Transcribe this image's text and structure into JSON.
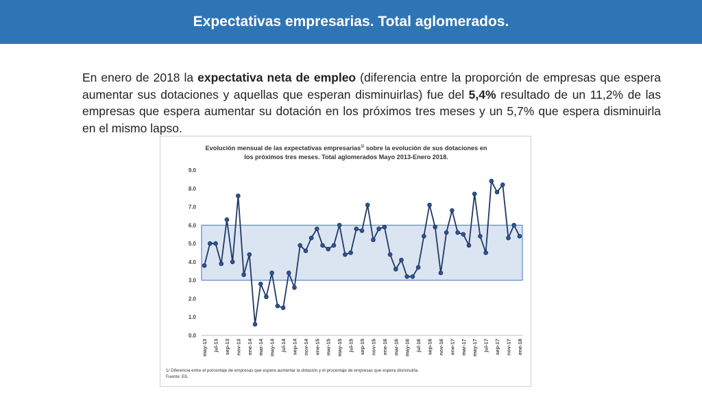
{
  "header": {
    "title": "Expectativas empresarias. Total aglomerados."
  },
  "paragraph": {
    "p1": "En enero de 2018 la ",
    "bold1": "expectativa neta de empleo",
    "p2": " (diferencia entre la proporción de empresas que espera aumentar sus dotaciones y aquellas que esperan disminuirlas) fue del ",
    "bold2": "5,4%",
    "p3": " resultado de un 11,2% de las empresas que espera aumentar su dotación en los próximos tres meses y un 5,7% que espera disminuirla en el mismo lapso."
  },
  "chart_title": {
    "line1_a": "Evolución mensual de las expectativas empresarias",
    "line1_sup": "1/",
    "line1_b": " sobre la evolución de sus dotaciones en",
    "line2": "los próximos tres meses. Total aglomerados Mayo 2013-Enero 2018."
  },
  "footnote": {
    "line1": "1/ Diferencia entre el porcentaje de empresas que espera aumentar la dotación y el procentaje de empresas que espera disminuirla.",
    "line2": "Fuente: EIL"
  },
  "colors": {
    "banner": "#2e75b6",
    "line": "#1f3864",
    "marker": "#2e5597",
    "band_fill": "#dbe4f1",
    "band_stroke": "#4472c4"
  },
  "chart_data": {
    "type": "line",
    "ylim": [
      0,
      9
    ],
    "yticks": [
      "0.0",
      "1.0",
      "2.0",
      "3.0",
      "4.0",
      "5.0",
      "6.0",
      "7.0",
      "8.0",
      "9.0"
    ],
    "band": [
      3,
      6
    ],
    "x": [
      "may-13",
      "jun-13",
      "jul-13",
      "ago-13",
      "sep-13",
      "oct-13",
      "nov-13",
      "dic-13",
      "ene-14",
      "feb-14",
      "mar-14",
      "abr-14",
      "may-14",
      "jun-14",
      "jul-14",
      "ago-14",
      "sep-14",
      "oct-14",
      "nov-14",
      "dic-14",
      "ene-15",
      "feb-15",
      "mar-15",
      "abr-15",
      "may-15",
      "jun-15",
      "jul-15",
      "ago-15",
      "sep-15",
      "oct-15",
      "nov-15",
      "dic-15",
      "ene-16",
      "feb-16",
      "mar-16",
      "abr-16",
      "may-16",
      "jun-16",
      "jul-16",
      "ago-16",
      "sep-16",
      "oct-16",
      "nov-16",
      "dic-16",
      "ene-17",
      "feb-17",
      "mar-17",
      "abr-17",
      "may-17",
      "jun-17",
      "jul-17",
      "ago-17",
      "sep-17",
      "oct-17",
      "nov-17",
      "dic-17",
      "ene-18"
    ],
    "xtick_labels": [
      "may-13",
      "jul-13",
      "sep-13",
      "nov-13",
      "ene-14",
      "mar-14",
      "may-14",
      "jul-14",
      "sep-14",
      "nov-14",
      "ene-15",
      "mar-15",
      "may-15",
      "jul-15",
      "sep-15",
      "nov-15",
      "ene-16",
      "mar-16",
      "may-16",
      "jul-16",
      "sep-16",
      "nov-16",
      "ene-17",
      "mar-17",
      "may-17",
      "jul-17",
      "sep-17",
      "nov-17",
      "ene-18"
    ],
    "values": [
      3.8,
      5.0,
      5.0,
      3.9,
      6.3,
      4.0,
      7.6,
      3.3,
      4.4,
      0.6,
      2.8,
      2.1,
      3.4,
      1.6,
      1.5,
      3.4,
      2.6,
      4.9,
      4.6,
      5.3,
      5.8,
      4.9,
      4.7,
      4.9,
      6.0,
      4.4,
      4.5,
      5.8,
      5.7,
      7.1,
      5.2,
      5.8,
      5.9,
      4.4,
      3.6,
      4.1,
      3.2,
      3.2,
      3.7,
      5.4,
      7.1,
      5.9,
      3.4,
      5.6,
      6.8,
      5.6,
      5.5,
      4.9,
      7.7,
      5.4,
      4.5,
      8.4,
      7.8,
      8.2,
      5.3,
      6.0,
      5.4
    ]
  }
}
